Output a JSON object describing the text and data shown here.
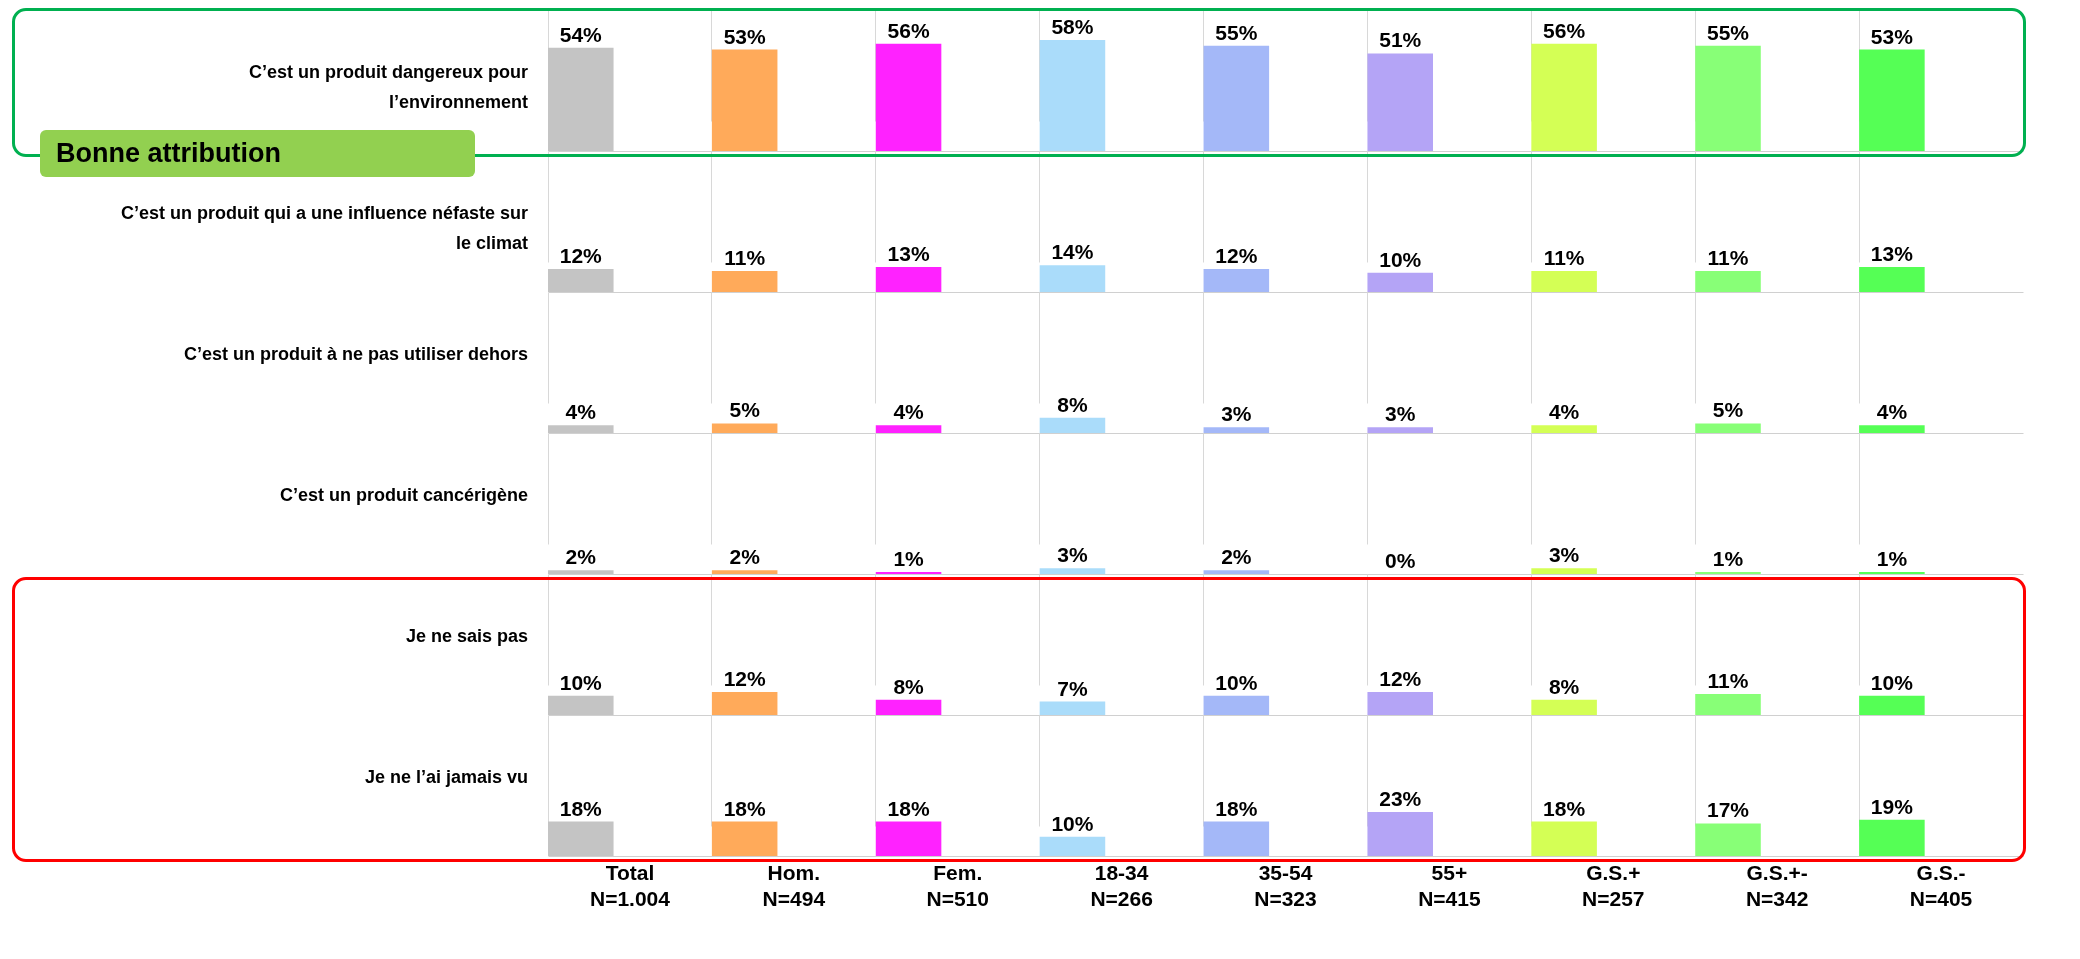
{
  "chart_data": [
    {
      "type": "bar",
      "ylabel": "C’est un produit dangereux pour\nl’environnement",
      "annotations": [
        "Bonne attribution"
      ],
      "categories": [
        null,
        null,
        null,
        null,
        null,
        null,
        null,
        null,
        null
      ],
      "colors": [
        "#c4c4c4",
        "#ffaa5a",
        "#ff22ff",
        "#aadcfa",
        "#a4b8f8",
        "#b4a4f6",
        "#d4ff55",
        "#88ff77",
        "#55ff55"
      ],
      "values": [
        54,
        53,
        56,
        58,
        55,
        51,
        56,
        55,
        53
      ],
      "value_labels": [
        "54%",
        "53%",
        "56%",
        "58%",
        "55%",
        "51%",
        "56%",
        "55%",
        "53%"
      ],
      "grid": "x",
      "tick_labels": false
    },
    {
      "type": "bar",
      "ylabel": "C’est un produit qui a une influence néfaste sur\nle climat",
      "categories": [
        null,
        null,
        null,
        null,
        null,
        null,
        null,
        null,
        null
      ],
      "colors": [
        "#c4c4c4",
        "#ffaa5a",
        "#ff22ff",
        "#aadcfa",
        "#a4b8f8",
        "#b4a4f6",
        "#d4ff55",
        "#88ff77",
        "#55ff55"
      ],
      "values": [
        12,
        11,
        13,
        14,
        12,
        10,
        11,
        11,
        13
      ],
      "value_labels": [
        "12%",
        "11%",
        "13%",
        "14%",
        "12%",
        "10%",
        "11%",
        "11%",
        "13%"
      ],
      "grid": "x",
      "tick_labels": false
    },
    {
      "type": "bar",
      "ylabel": "C’est un produit à ne pas utiliser dehors",
      "categories": [
        null,
        null,
        null,
        null,
        null,
        null,
        null,
        null,
        null
      ],
      "colors": [
        "#c4c4c4",
        "#ffaa5a",
        "#ff22ff",
        "#aadcfa",
        "#a4b8f8",
        "#b4a4f6",
        "#d4ff55",
        "#88ff77",
        "#55ff55"
      ],
      "values": [
        4,
        5,
        4,
        8,
        3,
        3,
        4,
        5,
        4
      ],
      "value_labels": [
        "4%",
        "5%",
        "4%",
        "8%",
        "3%",
        "3%",
        "4%",
        "5%",
        "4%"
      ],
      "grid": "x",
      "tick_labels": false
    },
    {
      "type": "bar",
      "ylabel": "C’est un produit cancérigène",
      "categories": [
        null,
        null,
        null,
        null,
        null,
        null,
        null,
        null,
        null
      ],
      "colors": [
        "#c4c4c4",
        "#ffaa5a",
        "#ff22ff",
        "#aadcfa",
        "#a4b8f8",
        "#b4a4f6",
        "#d4ff55",
        "#88ff77",
        "#55ff55"
      ],
      "values": [
        2,
        2,
        1,
        3,
        2,
        0,
        3,
        1,
        1
      ],
      "value_labels": [
        "2%",
        "2%",
        "1%",
        "3%",
        "2%",
        "0%",
        "3%",
        "1%",
        "1%"
      ],
      "grid": "x",
      "tick_labels": false
    },
    {
      "type": "bar",
      "ylabel": "Je ne sais pas",
      "categories": [
        null,
        null,
        null,
        null,
        null,
        null,
        null,
        null,
        null
      ],
      "colors": [
        "#c4c4c4",
        "#ffaa5a",
        "#ff22ff",
        "#aadcfa",
        "#a4b8f8",
        "#b4a4f6",
        "#d4ff55",
        "#88ff77",
        "#55ff55"
      ],
      "values": [
        10,
        12,
        8,
        7,
        10,
        12,
        8,
        11,
        10
      ],
      "value_labels": [
        "10%",
        "12%",
        "8%",
        "7%",
        "10%",
        "12%",
        "8%",
        "11%",
        "10%"
      ],
      "grid": "x",
      "tick_labels": false
    },
    {
      "type": "bar",
      "ylabel": "Je ne l’ai jamais vu",
      "categories": [
        "Total\nN=1.004",
        "Hom.\nN=494",
        "Fem.\nN=510",
        "18-34\nN=266",
        "35-54\nN=323",
        "55+\nN=415",
        "G.S.+\nN=257",
        "G.S.+-\nN=342",
        "G.S.-\nN=405"
      ],
      "colors": [
        "#c4c4c4",
        "#ffaa5a",
        "#ff22ff",
        "#aadcfa",
        "#a4b8f8",
        "#b4a4f6",
        "#d4ff55",
        "#88ff77",
        "#55ff55"
      ],
      "values": [
        18,
        18,
        18,
        10,
        18,
        23,
        18,
        17,
        19
      ],
      "value_labels": [
        "18%",
        "18%",
        "18%",
        "10%",
        "18%",
        "23%",
        "18%",
        "17%",
        "19%"
      ],
      "grid": "x",
      "tick_labels": "x"
    }
  ]
}
